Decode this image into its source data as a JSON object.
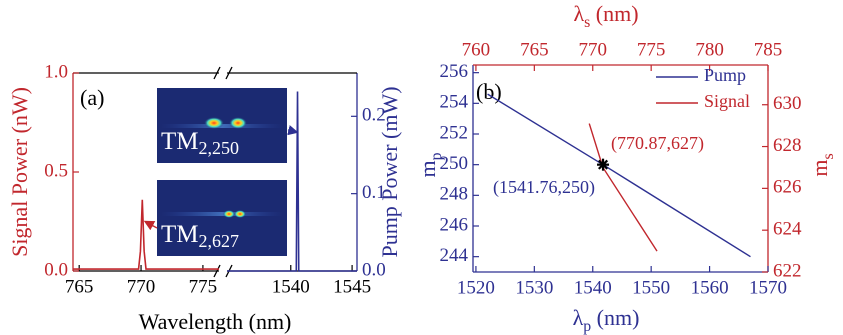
{
  "chart_data": [
    {
      "type": "line",
      "panel_label": "(a)",
      "xlabel": "Wavelength (nm)",
      "ylabel": "Signal Power (nW)",
      "y2label": "Pump Power (mW)",
      "x_segments": [
        {
          "xlim": [
            764.5,
            776.3
          ],
          "xticks": [
            765,
            770,
            775
          ]
        },
        {
          "xlim": [
            1534.8,
            1545.4
          ],
          "xticks": [
            1540,
            1545
          ]
        }
      ],
      "ylim": [
        0,
        1
      ],
      "yticks": [
        {
          "value": 0,
          "label": "0.0"
        },
        {
          "value": 0.5,
          "label": "0.5"
        },
        {
          "value": 1,
          "label": "1.0"
        }
      ],
      "y2lim": [
        0,
        0.256
      ],
      "y2ticks": [
        {
          "value": 0,
          "label": "0.0"
        },
        {
          "value": 0.1,
          "label": "0.1"
        },
        {
          "value": 0.2,
          "label": "0.2"
        }
      ],
      "series": [
        {
          "color": "#c1272d",
          "segment": 0,
          "x": [
            764.5,
            769.8,
            769.95,
            770.1,
            770.25,
            770.4,
            776.3
          ],
          "values": [
            0.01,
            0.01,
            0.1,
            0.36,
            0.1,
            0.01,
            0.01
          ]
        },
        {
          "color": "#2e3192",
          "segment": 1,
          "axis": "y2",
          "x": [
            1534.8,
            1540.45,
            1540.55,
            1540.65,
            1545.4
          ],
          "values": [
            0,
            0,
            0.232,
            0,
            0
          ]
        }
      ],
      "insets": [
        {
          "main": "TM",
          "sub": "2,250"
        },
        {
          "main": "TM",
          "sub": "2,627"
        }
      ]
    },
    {
      "type": "line",
      "panel_label": "(b)",
      "xlabel": {
        "main": "λ",
        "sub": "p",
        "rest": " (nm)"
      },
      "x2label": {
        "main": "λ",
        "sub": "s",
        "rest": " (nm)"
      },
      "ylabel": {
        "main": "m",
        "sub": "p"
      },
      "y2label": {
        "main": "m",
        "sub": "s"
      },
      "xlim": [
        1519.5,
        1570
      ],
      "xticks": [
        1520,
        1530,
        1540,
        1550,
        1560,
        1570
      ],
      "x2lim": [
        759.75,
        785
      ],
      "x2ticks": [
        760,
        765,
        770,
        775,
        780,
        785
      ],
      "ylim": [
        243,
        256.5
      ],
      "yticks": [
        244,
        246,
        248,
        250,
        252,
        254,
        256
      ],
      "y2lim": [
        622,
        631.9
      ],
      "y2ticks": [
        622,
        624,
        626,
        628,
        630
      ],
      "legend": "upper right",
      "series": [
        {
          "name": "Pump",
          "color": "#2e3192",
          "x": [
            1522,
            1541.76,
            1567
          ],
          "values": [
            254.6,
            250,
            244
          ]
        },
        {
          "name": "Signal",
          "color": "#c1272d",
          "axis": "y2",
          "xaxis": "x2",
          "x": [
            769.7,
            770.87,
            775.5
          ],
          "values": [
            629.1,
            627,
            623
          ]
        }
      ],
      "crossing": {
        "x": 1541.76,
        "y": 250
      },
      "annotations": [
        {
          "text": "(770.87,627)",
          "color": "#c1272d"
        },
        {
          "text": "(1541.76,250)",
          "color": "#2e3192"
        }
      ]
    }
  ]
}
